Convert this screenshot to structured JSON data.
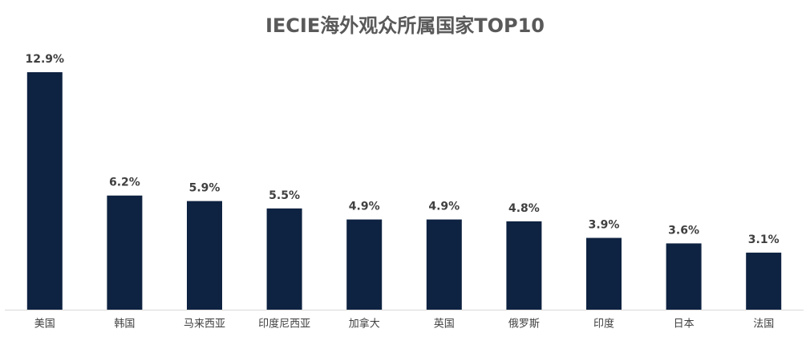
{
  "chart_data": {
    "type": "bar",
    "title": "IECIE海外观众所属国家TOP10",
    "categories": [
      "美国",
      "韩国",
      "马来西亚",
      "印度尼西亚",
      "加拿大",
      "英国",
      "俄罗斯",
      "印度",
      "日本",
      "法国"
    ],
    "values": [
      12.9,
      6.2,
      5.9,
      5.5,
      4.9,
      4.9,
      4.8,
      3.9,
      3.6,
      3.1
    ],
    "value_labels": [
      "12.9%",
      "6.2%",
      "5.9%",
      "5.5%",
      "4.9%",
      "4.9%",
      "4.8%",
      "3.9%",
      "3.6%",
      "3.1%"
    ],
    "color": "#0e2241"
  }
}
